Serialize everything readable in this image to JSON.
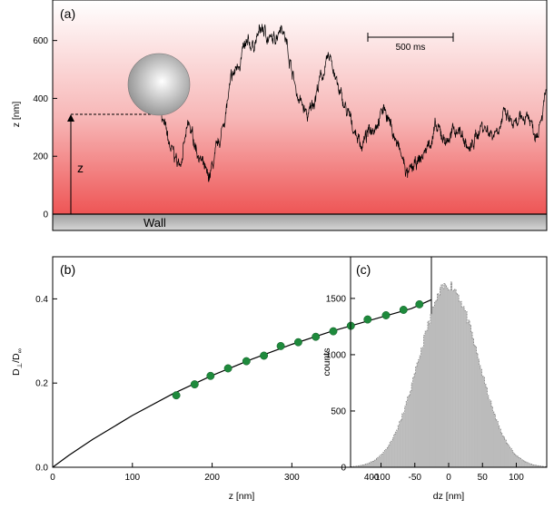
{
  "chart_data": [
    {
      "panel": "(a)",
      "type": "line",
      "ylabel": "z [nm]",
      "ylim": [
        0,
        740
      ],
      "yticks": [
        0,
        200,
        400,
        600
      ],
      "scalebar_label": "500 ms",
      "wall_label": "Wall",
      "height_marker_label": "z",
      "height_marker_value": 345,
      "background_gradient": {
        "top": "#ffffff",
        "bottom": "#ee5555"
      },
      "trace_anchors": [
        [
          0.0,
          345
        ],
        [
          0.02,
          230
        ],
        [
          0.045,
          170
        ],
        [
          0.07,
          300
        ],
        [
          0.095,
          215
        ],
        [
          0.12,
          110
        ],
        [
          0.15,
          240
        ],
        [
          0.18,
          450
        ],
        [
          0.21,
          560
        ],
        [
          0.24,
          590
        ],
        [
          0.26,
          640
        ],
        [
          0.29,
          590
        ],
        [
          0.31,
          670
        ],
        [
          0.33,
          560
        ],
        [
          0.35,
          420
        ],
        [
          0.38,
          330
        ],
        [
          0.41,
          460
        ],
        [
          0.44,
          545
        ],
        [
          0.46,
          420
        ],
        [
          0.49,
          320
        ],
        [
          0.52,
          240
        ],
        [
          0.55,
          310
        ],
        [
          0.58,
          370
        ],
        [
          0.61,
          245
        ],
        [
          0.64,
          130
        ],
        [
          0.66,
          165
        ],
        [
          0.68,
          205
        ],
        [
          0.71,
          290
        ],
        [
          0.74,
          255
        ],
        [
          0.77,
          300
        ],
        [
          0.8,
          215
        ],
        [
          0.83,
          310
        ],
        [
          0.86,
          280
        ],
        [
          0.89,
          340
        ],
        [
          0.92,
          295
        ],
        [
          0.95,
          350
        ],
        [
          0.97,
          280
        ],
        [
          1.0,
          420
        ]
      ]
    },
    {
      "panel": "(b)",
      "type": "scatter",
      "xlabel": "z [nm]",
      "ylabel_main": "D",
      "ylabel_sub": "⊥",
      "ylabel_rest": "/D",
      "ylabel_sub2": "∞",
      "xlim": [
        0,
        475
      ],
      "ylim": [
        0,
        0.5
      ],
      "xticks": [
        0,
        100,
        200,
        300,
        400
      ],
      "yticks": [
        0.0,
        0.2,
        0.4
      ],
      "ytick_labels": [
        "0.0",
        "0.2",
        "0.4"
      ],
      "point_color": "#1e8a3c",
      "points": [
        [
          155,
          0.171
        ],
        [
          178,
          0.197
        ],
        [
          198,
          0.217
        ],
        [
          220,
          0.235
        ],
        [
          243,
          0.252
        ],
        [
          265,
          0.265
        ],
        [
          286,
          0.288
        ],
        [
          308,
          0.297
        ],
        [
          330,
          0.31
        ],
        [
          352,
          0.323
        ],
        [
          374,
          0.336
        ],
        [
          395,
          0.351
        ],
        [
          418,
          0.361
        ],
        [
          440,
          0.374
        ],
        [
          460,
          0.387
        ]
      ],
      "curve": [
        [
          0,
          0.0
        ],
        [
          20,
          0.028
        ],
        [
          50,
          0.066
        ],
        [
          100,
          0.123
        ],
        [
          150,
          0.174
        ],
        [
          200,
          0.218
        ],
        [
          250,
          0.257
        ],
        [
          300,
          0.292
        ],
        [
          350,
          0.323
        ],
        [
          400,
          0.35
        ],
        [
          450,
          0.377
        ],
        [
          475,
          0.398
        ]
      ]
    },
    {
      "panel": "(c)",
      "type": "bar",
      "xlabel": "dz [nm]",
      "ylabel": "counts",
      "xlim": [
        -145,
        145
      ],
      "ylim": [
        0,
        1870
      ],
      "xticks": [
        -100,
        -50,
        0,
        50,
        100
      ],
      "yticks": [
        0,
        500,
        1000,
        1500
      ],
      "bin_width": 2,
      "peak_counts": 1620,
      "sigma_nm": 43,
      "bar_color": "#bbbbbb"
    }
  ]
}
